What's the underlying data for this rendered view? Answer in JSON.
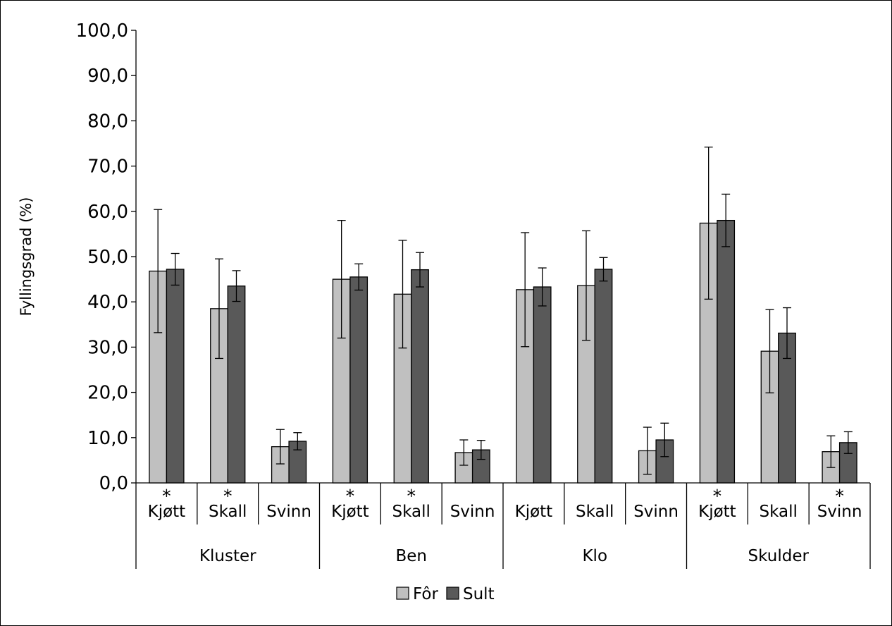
{
  "chart_data": {
    "type": "bar",
    "ylabel": "Fyllingsgrad (%)",
    "ylim": [
      0,
      100
    ],
    "yticks": [
      "0,0",
      "10,0",
      "20,0",
      "30,0",
      "40,0",
      "50,0",
      "60,0",
      "70,0",
      "80,0",
      "90,0",
      "100,0"
    ],
    "grid": false,
    "legend_position": "bottom",
    "groups": [
      {
        "name": "Kluster",
        "categories": [
          {
            "label": "Kjøtt",
            "significant": true
          },
          {
            "label": "Skall",
            "significant": true
          },
          {
            "label": "Svinn",
            "significant": false
          }
        ]
      },
      {
        "name": "Ben",
        "categories": [
          {
            "label": "Kjøtt",
            "significant": true
          },
          {
            "label": "Skall",
            "significant": true
          },
          {
            "label": "Svinn",
            "significant": false
          }
        ]
      },
      {
        "name": "Klo",
        "categories": [
          {
            "label": "Kjøtt",
            "significant": false
          },
          {
            "label": "Skall",
            "significant": false
          },
          {
            "label": "Svinn",
            "significant": false
          }
        ]
      },
      {
        "name": "Skulder",
        "categories": [
          {
            "label": "Kjøtt",
            "significant": true
          },
          {
            "label": "Skall",
            "significant": false
          },
          {
            "label": "Svinn",
            "significant": true
          }
        ]
      }
    ],
    "significance_marker": "*",
    "series": [
      {
        "name": "Fôr",
        "color": "#c0c0c0",
        "values": [
          46.8,
          38.5,
          8.0,
          45.0,
          41.7,
          6.7,
          42.7,
          43.6,
          7.1,
          57.4,
          29.1,
          6.9
        ],
        "errors": [
          13.6,
          11.0,
          3.8,
          13.0,
          11.9,
          2.8,
          12.6,
          12.1,
          5.2,
          16.8,
          9.2,
          3.5
        ]
      },
      {
        "name": "Sult",
        "color": "#595959",
        "values": [
          47.2,
          43.5,
          9.2,
          45.5,
          47.1,
          7.3,
          43.3,
          47.2,
          9.5,
          58.0,
          33.1,
          8.9
        ],
        "errors": [
          3.5,
          3.4,
          1.9,
          2.9,
          3.8,
          2.1,
          4.2,
          2.6,
          3.7,
          5.8,
          5.6,
          2.4
        ]
      }
    ]
  }
}
